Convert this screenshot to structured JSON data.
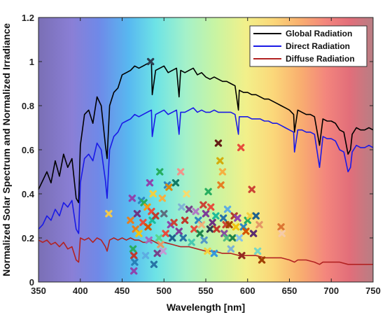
{
  "chart_data": {
    "type": "line",
    "xlabel": "Wavelength [nm]",
    "ylabel": "Normalized Solar Spectrum and Normalized Irradiance",
    "xlim": [
      350,
      750
    ],
    "ylim": [
      0,
      1.2
    ],
    "x_ticks": [
      350,
      400,
      450,
      500,
      550,
      600,
      650,
      700,
      750
    ],
    "y_ticks": [
      0,
      0.2,
      0.4,
      0.6,
      0.8,
      1,
      1.2
    ],
    "x_tick_labels": [
      "350",
      "400",
      "450",
      "500",
      "550",
      "600",
      "650",
      "700",
      "750"
    ],
    "y_tick_labels": [
      "0",
      "0.2",
      "0.4",
      "0.6",
      "0.8",
      "1",
      "1.2"
    ],
    "legend_position": "top-right",
    "background": "visible-spectrum color gradient",
    "series": [
      {
        "name": "Global Radiation",
        "color": "#000000",
        "x": [
          350,
          355,
          360,
          365,
          370,
          375,
          380,
          385,
          390,
          395,
          398,
          400,
          405,
          410,
          415,
          420,
          425,
          430,
          432,
          435,
          440,
          445,
          450,
          455,
          460,
          465,
          470,
          475,
          480,
          485,
          486,
          490,
          495,
          500,
          505,
          510,
          515,
          518,
          520,
          525,
          530,
          535,
          540,
          545,
          550,
          555,
          560,
          565,
          570,
          575,
          580,
          585,
          589,
          590,
          595,
          600,
          605,
          610,
          615,
          620,
          625,
          630,
          635,
          640,
          645,
          650,
          655,
          656,
          660,
          665,
          670,
          675,
          680,
          686,
          690,
          695,
          700,
          705,
          710,
          715,
          720,
          723,
          725,
          730,
          735,
          740,
          745,
          750
        ],
        "y": [
          0.42,
          0.46,
          0.5,
          0.45,
          0.55,
          0.48,
          0.58,
          0.52,
          0.56,
          0.38,
          0.36,
          0.62,
          0.76,
          0.78,
          0.72,
          0.84,
          0.8,
          0.62,
          0.56,
          0.8,
          0.86,
          0.88,
          0.94,
          0.95,
          0.96,
          0.98,
          0.97,
          0.98,
          0.99,
          1.0,
          0.85,
          0.96,
          0.97,
          0.98,
          0.95,
          0.96,
          0.97,
          0.84,
          0.96,
          0.95,
          0.96,
          0.97,
          0.94,
          0.95,
          0.93,
          0.92,
          0.93,
          0.92,
          0.91,
          0.91,
          0.9,
          0.89,
          0.78,
          0.87,
          0.86,
          0.86,
          0.85,
          0.85,
          0.84,
          0.83,
          0.83,
          0.82,
          0.81,
          0.8,
          0.79,
          0.78,
          0.76,
          0.68,
          0.78,
          0.77,
          0.76,
          0.76,
          0.75,
          0.62,
          0.74,
          0.73,
          0.73,
          0.72,
          0.69,
          0.68,
          0.58,
          0.6,
          0.67,
          0.7,
          0.69,
          0.69,
          0.7,
          0.69
        ]
      },
      {
        "name": "Direct Radiation",
        "color": "#1a1ae6",
        "x": [
          350,
          355,
          360,
          365,
          370,
          375,
          380,
          385,
          390,
          395,
          398,
          400,
          405,
          410,
          415,
          420,
          425,
          430,
          432,
          435,
          440,
          445,
          450,
          455,
          460,
          465,
          470,
          475,
          480,
          485,
          486,
          490,
          495,
          500,
          505,
          510,
          515,
          518,
          520,
          525,
          530,
          535,
          540,
          545,
          550,
          555,
          560,
          565,
          570,
          575,
          580,
          585,
          589,
          590,
          595,
          600,
          605,
          610,
          615,
          620,
          625,
          630,
          635,
          640,
          645,
          650,
          655,
          656,
          660,
          665,
          670,
          675,
          680,
          686,
          690,
          695,
          700,
          705,
          710,
          715,
          720,
          723,
          725,
          730,
          735,
          740,
          745,
          750
        ],
        "y": [
          0.24,
          0.26,
          0.3,
          0.28,
          0.33,
          0.3,
          0.36,
          0.34,
          0.37,
          0.24,
          0.22,
          0.45,
          0.56,
          0.58,
          0.55,
          0.63,
          0.6,
          0.46,
          0.38,
          0.6,
          0.66,
          0.68,
          0.72,
          0.73,
          0.74,
          0.76,
          0.75,
          0.76,
          0.77,
          0.78,
          0.66,
          0.76,
          0.77,
          0.78,
          0.76,
          0.77,
          0.78,
          0.67,
          0.77,
          0.77,
          0.78,
          0.79,
          0.77,
          0.78,
          0.77,
          0.77,
          0.78,
          0.77,
          0.77,
          0.77,
          0.77,
          0.76,
          0.67,
          0.75,
          0.75,
          0.75,
          0.74,
          0.74,
          0.74,
          0.73,
          0.73,
          0.72,
          0.72,
          0.71,
          0.7,
          0.69,
          0.68,
          0.59,
          0.69,
          0.69,
          0.68,
          0.68,
          0.67,
          0.52,
          0.66,
          0.65,
          0.65,
          0.64,
          0.6,
          0.59,
          0.5,
          0.52,
          0.59,
          0.62,
          0.61,
          0.61,
          0.62,
          0.61
        ]
      },
      {
        "name": "Diffuse Radiation",
        "color": "#b22222",
        "x": [
          350,
          355,
          360,
          365,
          370,
          375,
          380,
          385,
          390,
          395,
          398,
          400,
          405,
          410,
          415,
          420,
          425,
          430,
          432,
          435,
          440,
          445,
          450,
          455,
          460,
          465,
          470,
          475,
          480,
          485,
          490,
          495,
          500,
          510,
          520,
          530,
          540,
          550,
          560,
          570,
          580,
          590,
          600,
          610,
          620,
          630,
          640,
          650,
          656,
          660,
          670,
          680,
          686,
          690,
          700,
          710,
          720,
          730,
          740,
          750
        ],
        "y": [
          0.19,
          0.18,
          0.19,
          0.17,
          0.18,
          0.16,
          0.18,
          0.15,
          0.16,
          0.1,
          0.09,
          0.2,
          0.19,
          0.2,
          0.18,
          0.2,
          0.19,
          0.16,
          0.14,
          0.19,
          0.2,
          0.19,
          0.2,
          0.19,
          0.2,
          0.19,
          0.19,
          0.18,
          0.18,
          0.19,
          0.18,
          0.17,
          0.18,
          0.17,
          0.16,
          0.16,
          0.15,
          0.14,
          0.14,
          0.13,
          0.13,
          0.12,
          0.12,
          0.12,
          0.11,
          0.11,
          0.11,
          0.1,
          0.09,
          0.1,
          0.1,
          0.09,
          0.08,
          0.09,
          0.09,
          0.09,
          0.08,
          0.08,
          0.08,
          0.08
        ]
      }
    ],
    "markers": {
      "type": "scatter",
      "symbol": "x",
      "points": [
        {
          "x": 434,
          "y": 0.31,
          "color": "#f2c94c"
        },
        {
          "x": 460,
          "y": 0.28,
          "color": "#e67e22"
        },
        {
          "x": 462,
          "y": 0.38,
          "color": "#8e44ad"
        },
        {
          "x": 463,
          "y": 0.15,
          "color": "#27ae60"
        },
        {
          "x": 464,
          "y": 0.12,
          "color": "#c0392b"
        },
        {
          "x": 464,
          "y": 0.05,
          "color": "#8e44ad"
        },
        {
          "x": 465,
          "y": 0.09,
          "color": "#2980b9"
        },
        {
          "x": 466,
          "y": 0.24,
          "color": "#e67e22"
        },
        {
          "x": 468,
          "y": 0.31,
          "color": "#6c3483"
        },
        {
          "x": 470,
          "y": 0.22,
          "color": "#f1c40f"
        },
        {
          "x": 473,
          "y": 0.37,
          "color": "#2e86c1"
        },
        {
          "x": 475,
          "y": 0.27,
          "color": "#e74c3c"
        },
        {
          "x": 476,
          "y": 0.36,
          "color": "#27ae60"
        },
        {
          "x": 478,
          "y": 0.12,
          "color": "#5dade2"
        },
        {
          "x": 480,
          "y": 0.34,
          "color": "#f39c12"
        },
        {
          "x": 481,
          "y": 0.25,
          "color": "#d35400"
        },
        {
          "x": 482,
          "y": 0.19,
          "color": "#a569bd"
        },
        {
          "x": 483,
          "y": 0.45,
          "color": "#8e44ad"
        },
        {
          "x": 484,
          "y": 1.0,
          "color": "#2c3e50"
        },
        {
          "x": 485,
          "y": 0.32,
          "color": "#e74c3c"
        },
        {
          "x": 486,
          "y": 0.28,
          "color": "#1abc9c"
        },
        {
          "x": 487,
          "y": 0.4,
          "color": "#f4d03f"
        },
        {
          "x": 488,
          "y": 0.08,
          "color": "#2874a6"
        },
        {
          "x": 490,
          "y": 0.3,
          "color": "#c0392b"
        },
        {
          "x": 492,
          "y": 0.13,
          "color": "#76448a"
        },
        {
          "x": 494,
          "y": 0.2,
          "color": "#58d68d"
        },
        {
          "x": 495,
          "y": 0.5,
          "color": "#27ae60"
        },
        {
          "x": 496,
          "y": 0.17,
          "color": "#e59866"
        },
        {
          "x": 498,
          "y": 0.38,
          "color": "#f5b041"
        },
        {
          "x": 499,
          "y": 0.14,
          "color": "#c39bd3"
        },
        {
          "x": 500,
          "y": 0.31,
          "color": "#5d6d7e"
        },
        {
          "x": 502,
          "y": 0.22,
          "color": "#e74c3c"
        },
        {
          "x": 504,
          "y": 0.44,
          "color": "#2e86c1"
        },
        {
          "x": 506,
          "y": 0.43,
          "color": "#d68910"
        },
        {
          "x": 508,
          "y": 0.26,
          "color": "#8e44ad"
        },
        {
          "x": 510,
          "y": 0.2,
          "color": "#1f618d"
        },
        {
          "x": 512,
          "y": 0.27,
          "color": "#cb4335"
        },
        {
          "x": 514,
          "y": 0.45,
          "color": "#117a65"
        },
        {
          "x": 518,
          "y": 0.23,
          "color": "#7d3c98"
        },
        {
          "x": 520,
          "y": 0.5,
          "color": "#f1948a"
        },
        {
          "x": 521,
          "y": 0.34,
          "color": "#7fb3d5"
        },
        {
          "x": 523,
          "y": 0.2,
          "color": "#2874a6"
        },
        {
          "x": 525,
          "y": 0.28,
          "color": "#c0392b"
        },
        {
          "x": 527,
          "y": 0.4,
          "color": "#f7dc6f"
        },
        {
          "x": 530,
          "y": 0.33,
          "color": "#76448a"
        },
        {
          "x": 533,
          "y": 0.18,
          "color": "#48c9b0"
        },
        {
          "x": 536,
          "y": 0.24,
          "color": "#e74c3c"
        },
        {
          "x": 538,
          "y": 0.32,
          "color": "#af7ac5"
        },
        {
          "x": 541,
          "y": 0.28,
          "color": "#2e86c1"
        },
        {
          "x": 543,
          "y": 0.22,
          "color": "#1e8449"
        },
        {
          "x": 545,
          "y": 0.26,
          "color": "#f0b27a"
        },
        {
          "x": 547,
          "y": 0.35,
          "color": "#cb4335"
        },
        {
          "x": 548,
          "y": 0.19,
          "color": "#5499c7"
        },
        {
          "x": 550,
          "y": 0.31,
          "color": "#7d3c98"
        },
        {
          "x": 552,
          "y": 0.14,
          "color": "#f4d03f"
        },
        {
          "x": 553,
          "y": 0.41,
          "color": "#27ae60"
        },
        {
          "x": 555,
          "y": 0.24,
          "color": "#2e4053"
        },
        {
          "x": 556,
          "y": 0.34,
          "color": "#e74c3c"
        },
        {
          "x": 558,
          "y": 0.27,
          "color": "#6c3483"
        },
        {
          "x": 560,
          "y": 0.13,
          "color": "#3498db"
        },
        {
          "x": 562,
          "y": 0.3,
          "color": "#1abc9c"
        },
        {
          "x": 563,
          "y": 0.24,
          "color": "#c0392b"
        },
        {
          "x": 565,
          "y": 0.63,
          "color": "#641e16"
        },
        {
          "x": 567,
          "y": 0.55,
          "color": "#d4ac0d"
        },
        {
          "x": 568,
          "y": 0.44,
          "color": "#e67e22"
        },
        {
          "x": 570,
          "y": 0.5,
          "color": "#f5b041"
        },
        {
          "x": 571,
          "y": 0.29,
          "color": "#2874a6"
        },
        {
          "x": 572,
          "y": 0.22,
          "color": "#884ea0"
        },
        {
          "x": 574,
          "y": 0.26,
          "color": "#cb4335"
        },
        {
          "x": 575,
          "y": 0.2,
          "color": "#52be80"
        },
        {
          "x": 576,
          "y": 0.33,
          "color": "#5dade2"
        },
        {
          "x": 578,
          "y": 0.26,
          "color": "#a04000"
        },
        {
          "x": 580,
          "y": 0.15,
          "color": "#7fb3d5"
        },
        {
          "x": 582,
          "y": 0.2,
          "color": "#1e8449"
        },
        {
          "x": 584,
          "y": 0.3,
          "color": "#b03a2e"
        },
        {
          "x": 586,
          "y": 0.25,
          "color": "#f1c40f"
        },
        {
          "x": 588,
          "y": 0.29,
          "color": "#8e44ad"
        },
        {
          "x": 590,
          "y": 0.2,
          "color": "#85c1e9"
        },
        {
          "x": 592,
          "y": 0.61,
          "color": "#e74c3c"
        },
        {
          "x": 593,
          "y": 0.12,
          "color": "#922b21"
        },
        {
          "x": 595,
          "y": 0.25,
          "color": "#2e86c1"
        },
        {
          "x": 598,
          "y": 0.23,
          "color": "#d35400"
        },
        {
          "x": 600,
          "y": 0.28,
          "color": "#27ae60"
        },
        {
          "x": 603,
          "y": 0.3,
          "color": "#f4d03f"
        },
        {
          "x": 605,
          "y": 0.42,
          "color": "#cb4335"
        },
        {
          "x": 607,
          "y": 0.22,
          "color": "#5b2c6f"
        },
        {
          "x": 610,
          "y": 0.3,
          "color": "#1f618d"
        },
        {
          "x": 612,
          "y": 0.14,
          "color": "#76d7c4"
        },
        {
          "x": 614,
          "y": 0.26,
          "color": "#e59866"
        },
        {
          "x": 617,
          "y": 0.1,
          "color": "#a04000"
        },
        {
          "x": 640,
          "y": 0.25,
          "color": "#dc7633"
        },
        {
          "x": 641,
          "y": 0.22,
          "color": "#f5cba7"
        }
      ]
    }
  }
}
